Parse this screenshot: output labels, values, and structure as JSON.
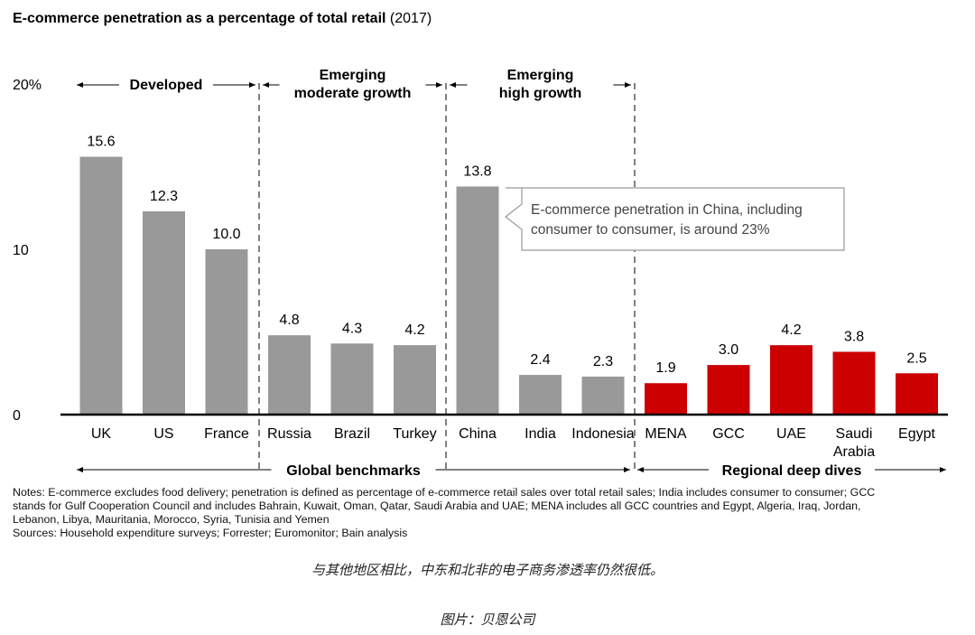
{
  "chart_data": {
    "type": "bar",
    "title": "E-commerce penetration as a percentage of total retail",
    "title_suffix": "(2017)",
    "categories": [
      "UK",
      "US",
      "France",
      "Russia",
      "Brazil",
      "Turkey",
      "China",
      "India",
      "Indonesia",
      "MENA",
      "GCC",
      "UAE",
      "Saudi Arabia",
      "Egypt"
    ],
    "values": [
      15.6,
      12.3,
      10.0,
      4.8,
      4.3,
      4.2,
      13.8,
      2.4,
      2.3,
      1.9,
      3.0,
      4.2,
      3.8,
      2.5
    ],
    "value_labels": [
      "15.6",
      "12.3",
      "10.0",
      "4.8",
      "4.3",
      "4.2",
      "13.8",
      "2.4",
      "2.3",
      "1.9",
      "3.0",
      "4.2",
      "3.8",
      "2.5"
    ],
    "colors": [
      "#999999",
      "#999999",
      "#999999",
      "#999999",
      "#999999",
      "#999999",
      "#999999",
      "#999999",
      "#999999",
      "#cc0000",
      "#cc0000",
      "#cc0000",
      "#cc0000",
      "#cc0000"
    ],
    "ylim": [
      0,
      20
    ],
    "yticks": [
      {
        "v": 0,
        "label": "0"
      },
      {
        "v": 10,
        "label": "10"
      },
      {
        "v": 20,
        "label": "20%"
      }
    ],
    "groups": [
      {
        "lines": [
          "Developed"
        ]
      },
      {
        "lines": [
          "Emerging",
          "moderate growth"
        ]
      },
      {
        "lines": [
          "Emerging",
          "high growth"
        ]
      }
    ],
    "bottom_groups": [
      "Global benchmarks",
      "Regional deep dives"
    ],
    "annotation": [
      "E-commerce penetration in China, including",
      "consumer to consumer, is around 23%"
    ]
  },
  "notes": [
    "Notes: E-commerce excludes food delivery; penetration is defined as percentage of e-commerce retail sales over total retail sales; India includes consumer to consumer; GCC",
    "stands for Gulf Cooperation Council and includes Bahrain, Kuwait, Oman, Qatar, Saudi Arabia and UAE; MENA includes all GCC countries and Egypt, Algeria, Iraq, Jordan,",
    "Lebanon, Libya, Mauritania, Morocco, Syria, Tunisia and Yemen",
    "Sources: Household expenditure surveys; Forrester; Euromonitor; Bain analysis"
  ],
  "caption": "与其他地区相比，中东和北非的电子商务渗透率仍然很低。",
  "credit": "图片：贝恩公司"
}
